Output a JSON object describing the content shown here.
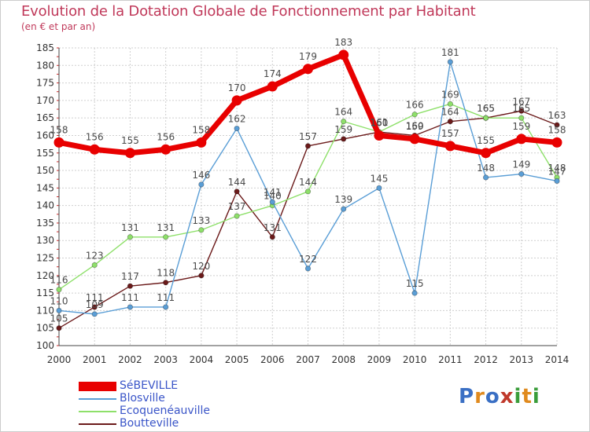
{
  "title": "Evolution de la Dotation Globale de Fonctionnement par Habitant",
  "subtitle": "(en € et par an)",
  "logo": {
    "text": "Proxiti",
    "colors": [
      "#3a6fc4",
      "#e08a1e",
      "#3a6fc4",
      "#c0392b",
      "#3a9d3a",
      "#e08a1e",
      "#3a9d3a"
    ]
  },
  "chart_data": {
    "type": "line",
    "title": "Evolution de la Dotation Globale de Fonctionnement par Habitant",
    "ylabel": "(en € et par an)",
    "x": [
      2000,
      2001,
      2002,
      2003,
      2004,
      2005,
      2006,
      2007,
      2008,
      2009,
      2010,
      2011,
      2012,
      2013,
      2014
    ],
    "ylim": [
      100,
      185
    ],
    "yticks": [
      100,
      105,
      110,
      115,
      120,
      125,
      130,
      135,
      140,
      145,
      150,
      155,
      160,
      165,
      170,
      175,
      180,
      185
    ],
    "grid": true,
    "series": [
      {
        "name": "Boutteville",
        "color": "#6b1a1a",
        "text_color": "#3a55c8",
        "values": [
          105,
          111,
          117,
          118,
          120,
          144,
          131,
          157,
          159,
          161,
          160,
          164,
          165,
          167,
          163
        ]
      },
      {
        "name": "Ecoquenéauville",
        "color": "#8ee06a",
        "text_color": "#3a55c8",
        "values": [
          116,
          123,
          131,
          131,
          133,
          137,
          140,
          144,
          164,
          161,
          166,
          169,
          165,
          165,
          148
        ]
      },
      {
        "name": "Blosville",
        "color": "#5a9ed6",
        "text_color": "#3a55c8",
        "values": [
          110,
          109,
          111,
          111,
          146,
          162,
          141,
          122,
          139,
          145,
          115,
          181,
          148,
          149,
          147
        ]
      },
      {
        "name": "SéBEVILLE",
        "color": "#e80000",
        "text_color": "#3a55c8",
        "values": [
          158,
          156,
          155,
          156,
          158,
          170,
          174,
          179,
          183,
          160,
          159,
          157,
          155,
          159,
          158
        ]
      }
    ],
    "legend_order": [
      "SéBEVILLE",
      "Blosville",
      "Ecoquenéauville",
      "Boutteville"
    ]
  }
}
